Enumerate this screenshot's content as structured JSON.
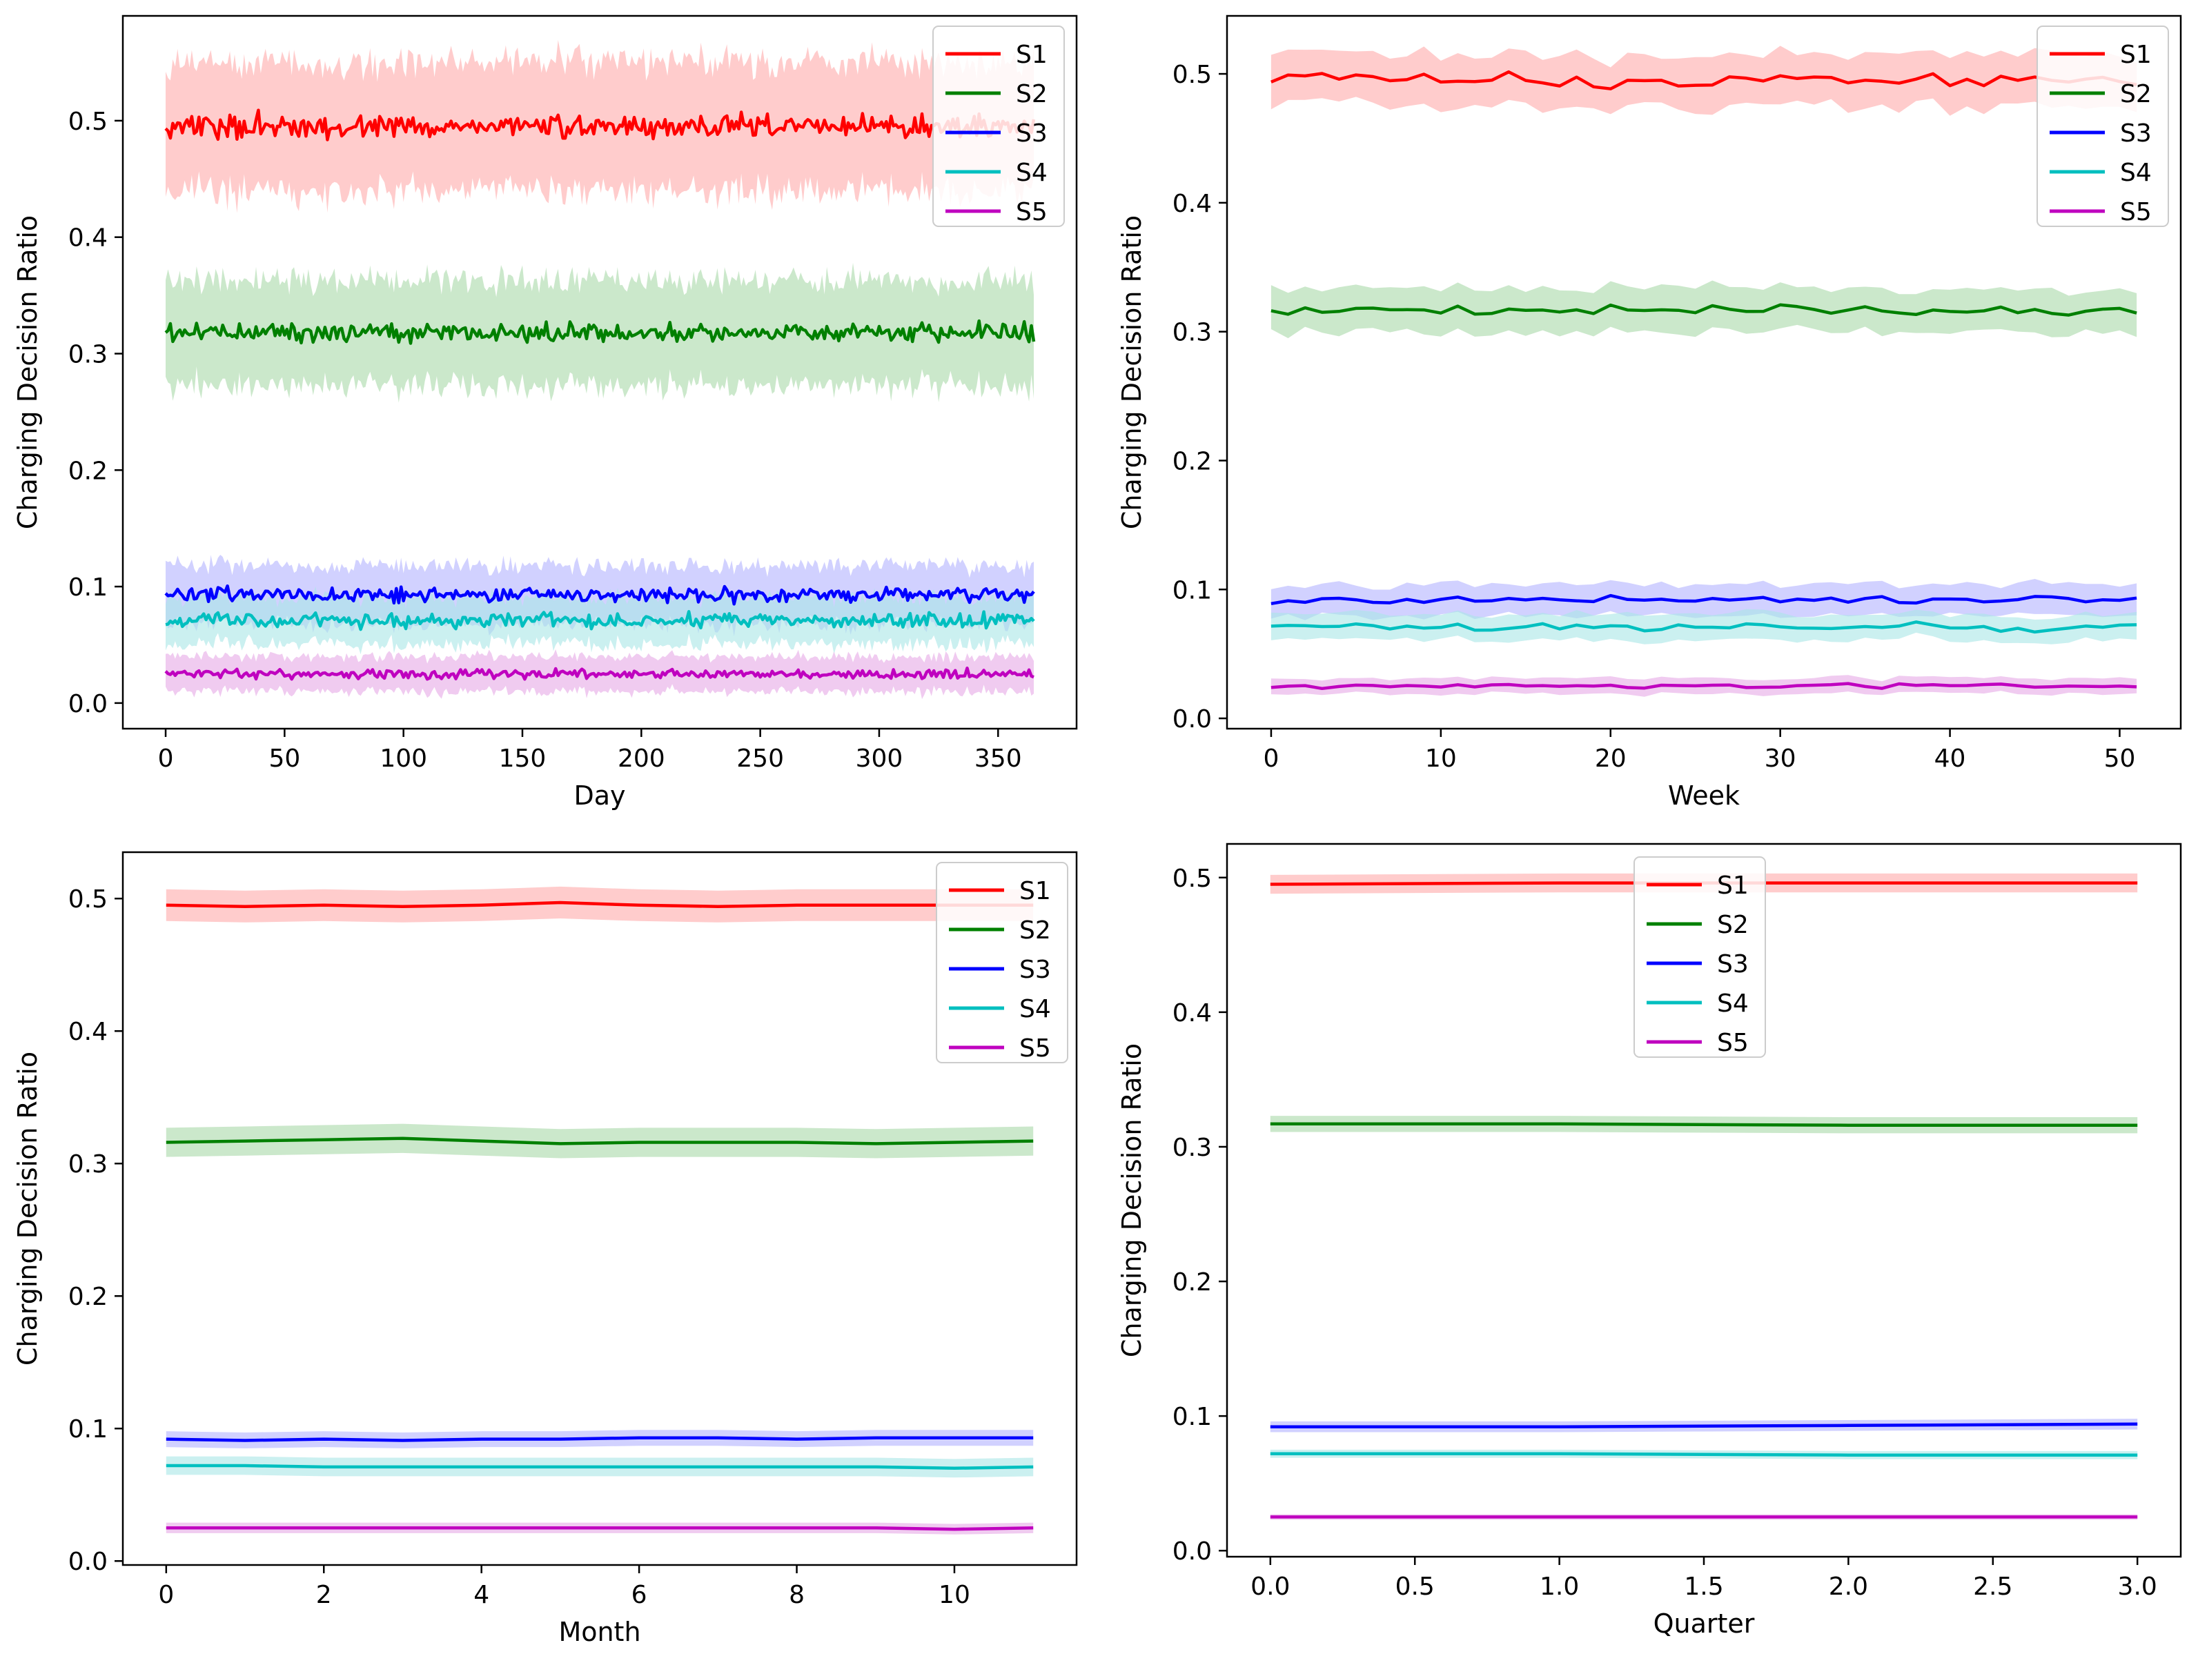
{
  "colors": {
    "S1": "#ff0000",
    "S2": "#008000",
    "S3": "#0000ff",
    "S4": "#00bfbf",
    "S5": "#bf00bf",
    "S1_band": "#ffaaaa",
    "S2_band": "#a9d8a9",
    "S3_band": "#b3b3ff",
    "S4_band": "#a9e6e6",
    "S5_band": "#e6a9e6"
  },
  "chart_data": [
    {
      "type": "line",
      "panel": "daily",
      "title": "",
      "xlabel": "Day",
      "ylabel": "Charging Decision Ratio",
      "xlim": [
        -18,
        383
      ],
      "ylim": [
        -0.022,
        0.59
      ],
      "xticks": [
        0,
        50,
        100,
        150,
        200,
        250,
        300,
        350
      ],
      "xtick_labels": [
        "0",
        "50",
        "100",
        "150",
        "200",
        "250",
        "300",
        "350"
      ],
      "yticks": [
        0.0,
        0.1,
        0.2,
        0.3,
        0.4,
        0.5
      ],
      "ytick_labels": [
        "0.0",
        "0.1",
        "0.2",
        "0.3",
        "0.4",
        "0.5"
      ],
      "legend": "top-right",
      "x_range": [
        0,
        365
      ],
      "series": [
        {
          "name": "S1",
          "mean": 0.495,
          "band": 0.055,
          "noise": 0.005
        },
        {
          "name": "S2",
          "mean": 0.318,
          "band": 0.045,
          "noise": 0.004
        },
        {
          "name": "S3",
          "mean": 0.093,
          "band": 0.025,
          "noise": 0.003
        },
        {
          "name": "S4",
          "mean": 0.071,
          "band": 0.02,
          "noise": 0.003
        },
        {
          "name": "S5",
          "mean": 0.025,
          "band": 0.015,
          "noise": 0.002
        }
      ]
    },
    {
      "type": "line",
      "panel": "weekly",
      "title": "",
      "xlabel": "Week",
      "ylabel": "Charging Decision Ratio",
      "xlim": [
        -2.6,
        53.6
      ],
      "ylim": [
        -0.008,
        0.545
      ],
      "xticks": [
        0,
        10,
        20,
        30,
        40,
        50
      ],
      "xtick_labels": [
        "0",
        "10",
        "20",
        "30",
        "40",
        "50"
      ],
      "yticks": [
        0.0,
        0.1,
        0.2,
        0.3,
        0.4,
        0.5
      ],
      "ytick_labels": [
        "0.0",
        "0.1",
        "0.2",
        "0.3",
        "0.4",
        "0.5"
      ],
      "legend": "top-right",
      "x_range": [
        0,
        51
      ],
      "series": [
        {
          "name": "S1",
          "mean": 0.496,
          "band": 0.02,
          "noise": 0.003
        },
        {
          "name": "S2",
          "mean": 0.317,
          "band": 0.017,
          "noise": 0.002
        },
        {
          "name": "S3",
          "mean": 0.092,
          "band": 0.012,
          "noise": 0.0015
        },
        {
          "name": "S4",
          "mean": 0.071,
          "band": 0.01,
          "noise": 0.0015
        },
        {
          "name": "S5",
          "mean": 0.025,
          "band": 0.006,
          "noise": 0.0008
        }
      ]
    },
    {
      "type": "line",
      "panel": "monthly",
      "title": "",
      "xlabel": "Month",
      "ylabel": "Charging Decision Ratio",
      "xlim": [
        -0.55,
        11.55
      ],
      "ylim": [
        -0.003,
        0.535
      ],
      "xticks": [
        0,
        2,
        4,
        6,
        8,
        10
      ],
      "xtick_labels": [
        "0",
        "2",
        "4",
        "6",
        "8",
        "10"
      ],
      "yticks": [
        0.0,
        0.1,
        0.2,
        0.3,
        0.4,
        0.5
      ],
      "ytick_labels": [
        "0.0",
        "0.1",
        "0.2",
        "0.3",
        "0.4",
        "0.5"
      ],
      "legend": "top-right",
      "series": [
        {
          "name": "S1",
          "x": [
            0,
            1,
            2,
            3,
            4,
            5,
            6,
            7,
            8,
            9,
            10,
            11
          ],
          "y": [
            0.495,
            0.494,
            0.495,
            0.494,
            0.495,
            0.497,
            0.495,
            0.494,
            0.495,
            0.495,
            0.495,
            0.495
          ],
          "band": 0.012
        },
        {
          "name": "S2",
          "x": [
            0,
            1,
            2,
            3,
            4,
            5,
            6,
            7,
            8,
            9,
            10,
            11
          ],
          "y": [
            0.316,
            0.317,
            0.318,
            0.319,
            0.317,
            0.315,
            0.316,
            0.316,
            0.316,
            0.315,
            0.316,
            0.317
          ],
          "band": 0.011
        },
        {
          "name": "S3",
          "x": [
            0,
            1,
            2,
            3,
            4,
            5,
            6,
            7,
            8,
            9,
            10,
            11
          ],
          "y": [
            0.092,
            0.091,
            0.092,
            0.091,
            0.092,
            0.092,
            0.093,
            0.093,
            0.092,
            0.093,
            0.093,
            0.093
          ],
          "band": 0.006
        },
        {
          "name": "S4",
          "x": [
            0,
            1,
            2,
            3,
            4,
            5,
            6,
            7,
            8,
            9,
            10,
            11
          ],
          "y": [
            0.072,
            0.072,
            0.071,
            0.071,
            0.071,
            0.071,
            0.071,
            0.071,
            0.071,
            0.071,
            0.07,
            0.071
          ],
          "band": 0.007
        },
        {
          "name": "S5",
          "x": [
            0,
            1,
            2,
            3,
            4,
            5,
            6,
            7,
            8,
            9,
            10,
            11
          ],
          "y": [
            0.025,
            0.025,
            0.025,
            0.025,
            0.025,
            0.025,
            0.025,
            0.025,
            0.025,
            0.025,
            0.024,
            0.025
          ],
          "band": 0.004
        }
      ]
    },
    {
      "type": "line",
      "panel": "quarterly",
      "title": "",
      "xlabel": "Quarter",
      "ylabel": "Charging Decision Ratio",
      "xlim": [
        -0.15,
        3.15
      ],
      "ylim": [
        -0.0045,
        0.525
      ],
      "xticks": [
        0.0,
        0.5,
        1.0,
        1.5,
        2.0,
        2.5,
        3.0
      ],
      "xtick_labels": [
        "0.0",
        "0.5",
        "1.0",
        "1.5",
        "2.0",
        "2.5",
        "3.0"
      ],
      "yticks": [
        0.0,
        0.1,
        0.2,
        0.3,
        0.4,
        0.5
      ],
      "ytick_labels": [
        "0.0",
        "0.1",
        "0.2",
        "0.3",
        "0.4",
        "0.5"
      ],
      "legend": "top-center",
      "series": [
        {
          "name": "S1",
          "x": [
            0,
            1,
            2,
            3
          ],
          "y": [
            0.495,
            0.496,
            0.496,
            0.496
          ],
          "band": 0.007
        },
        {
          "name": "S2",
          "x": [
            0,
            1,
            2,
            3
          ],
          "y": [
            0.317,
            0.317,
            0.316,
            0.316
          ],
          "band": 0.006
        },
        {
          "name": "S3",
          "x": [
            0,
            1,
            2,
            3
          ],
          "y": [
            0.092,
            0.092,
            0.093,
            0.094
          ],
          "band": 0.004
        },
        {
          "name": "S4",
          "x": [
            0,
            1,
            2,
            3
          ],
          "y": [
            0.072,
            0.072,
            0.071,
            0.071
          ],
          "band": 0.003
        },
        {
          "name": "S5",
          "x": [
            0,
            1,
            2,
            3
          ],
          "y": [
            0.025,
            0.025,
            0.025,
            0.025
          ],
          "band": 0.002
        }
      ]
    }
  ]
}
